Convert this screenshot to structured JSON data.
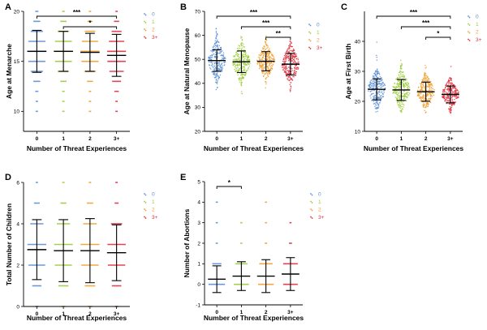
{
  "colors": [
    "#5b8fd6",
    "#9ccc3c",
    "#f0a030",
    "#e0303e"
  ],
  "chart_data": [
    {
      "type": "scatter",
      "panel": "A",
      "xlabel": "Number of Threat Experiences",
      "ylabel": "Age at Menarche",
      "categories": [
        "0",
        "1",
        "2",
        "3+"
      ],
      "legend": [
        "0",
        "1",
        "2",
        "3+"
      ],
      "ylim": [
        8,
        20
      ],
      "yticks": [
        10,
        15,
        20
      ],
      "means": [
        16.0,
        16.0,
        15.9,
        15.6
      ],
      "sds": [
        2.1,
        2.0,
        1.9,
        2.1
      ],
      "ranges": [
        [
          10,
          20
        ],
        [
          10,
          20
        ],
        [
          10,
          20
        ],
        [
          10,
          20
        ]
      ],
      "spread": "integer",
      "significance": [
        {
          "from": 0,
          "to": 3,
          "label": "***"
        },
        {
          "from": 1,
          "to": 3,
          "label": "*"
        }
      ]
    },
    {
      "type": "scatter",
      "panel": "B",
      "xlabel": "Number of Threat Experiences",
      "ylabel": "Age at Natural Menopause",
      "categories": [
        "0",
        "1",
        "2",
        "3+"
      ],
      "legend": [
        "0",
        "1",
        "2",
        "3+"
      ],
      "ylim": [
        20,
        70
      ],
      "yticks": [
        20,
        30,
        40,
        50,
        60,
        70
      ],
      "means": [
        49.5,
        49.0,
        49.2,
        48.0
      ],
      "sds": [
        4.5,
        4.5,
        4.0,
        4.5
      ],
      "ranges": [
        [
          30,
          63
        ],
        [
          30,
          63
        ],
        [
          35,
          62
        ],
        [
          30,
          58
        ]
      ],
      "spread": "continuous",
      "significance": [
        {
          "from": 0,
          "to": 3,
          "label": "***"
        },
        {
          "from": 1,
          "to": 3,
          "label": "***"
        },
        {
          "from": 2,
          "to": 3,
          "label": "**"
        }
      ]
    },
    {
      "type": "scatter",
      "panel": "C",
      "xlabel": "Number of Threat Experiences",
      "ylabel": "Age at First Birth",
      "categories": [
        "0",
        "1",
        "2",
        "3+"
      ],
      "legend": [
        "0",
        "1",
        "2",
        "3+"
      ],
      "ylim": [
        10,
        50
      ],
      "yticks": [
        10,
        20,
        30,
        40
      ],
      "means": [
        24.0,
        23.8,
        23.2,
        22.3
      ],
      "sds": [
        3.5,
        3.5,
        3.2,
        2.8
      ],
      "ranges": [
        [
          16,
          42
        ],
        [
          16,
          40
        ],
        [
          16,
          36
        ],
        [
          16,
          36
        ]
      ],
      "spread": "continuous",
      "significance": [
        {
          "from": 0,
          "to": 3,
          "label": "***"
        },
        {
          "from": 1,
          "to": 3,
          "label": "***"
        },
        {
          "from": 2,
          "to": 3,
          "label": "*"
        }
      ]
    },
    {
      "type": "scatter",
      "panel": "D",
      "xlabel": "Number of Threat Experiences",
      "ylabel": "Total Number of Children",
      "categories": [
        "0",
        "1",
        "2",
        "3+"
      ],
      "legend": [
        "0",
        "1",
        "2",
        "3+"
      ],
      "ylim": [
        0,
        6
      ],
      "yticks": [
        0,
        2,
        4,
        6
      ],
      "means": [
        2.75,
        2.7,
        2.7,
        2.6
      ],
      "sds": [
        1.45,
        1.5,
        1.55,
        1.35
      ],
      "ranges": [
        [
          0,
          6
        ],
        [
          0,
          6
        ],
        [
          0,
          6
        ],
        [
          0,
          6
        ]
      ],
      "spread": "integer",
      "significance": []
    },
    {
      "type": "scatter",
      "panel": "E",
      "xlabel": "Number of Threat Experiences",
      "ylabel": "Number of Abortions",
      "categories": [
        "0",
        "1",
        "2",
        "3+"
      ],
      "legend": [
        "0",
        "1",
        "2",
        "3+"
      ],
      "ylim": [
        -1,
        5
      ],
      "yticks": [
        -1,
        0,
        1,
        2,
        3,
        4,
        5
      ],
      "means": [
        0.25,
        0.4,
        0.4,
        0.5
      ],
      "sds": [
        0.65,
        0.7,
        0.8,
        0.8
      ],
      "ranges": [
        [
          0,
          4
        ],
        [
          0,
          3
        ],
        [
          0,
          4
        ],
        [
          0,
          3
        ]
      ],
      "spread": "integer",
      "significance": [
        {
          "from": 0,
          "to": 1,
          "label": "*"
        }
      ]
    }
  ]
}
